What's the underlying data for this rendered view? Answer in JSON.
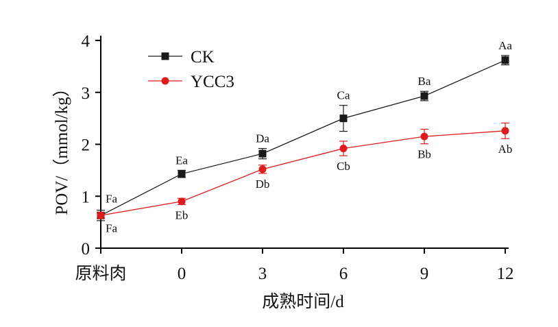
{
  "chart_data": {
    "type": "line",
    "categories": [
      "原料肉",
      "0",
      "3",
      "6",
      "9",
      "12"
    ],
    "xlabel": "成熟时间/d",
    "ylabel": "POV/（mmol/kg）",
    "ylim": [
      0,
      4
    ],
    "yticks": [
      "0",
      "1",
      "2",
      "3",
      "4"
    ],
    "grid": false,
    "legend_position": "top-left",
    "series": [
      {
        "name": "CK",
        "color": "#1a1a1a",
        "marker": "square",
        "values": [
          0.63,
          1.43,
          1.82,
          2.5,
          2.93,
          3.62
        ],
        "errors": [
          0.1,
          0.07,
          0.1,
          0.25,
          0.09,
          0.09
        ],
        "labels": [
          "Fa",
          "Ea",
          "Da",
          "Ca",
          "Ba",
          "Aa"
        ],
        "label_side": "above"
      },
      {
        "name": "YCC3",
        "color": "#e31a1c",
        "marker": "circle",
        "values": [
          0.63,
          0.9,
          1.52,
          1.92,
          2.15,
          2.26
        ],
        "errors": [
          0.06,
          0.06,
          0.08,
          0.14,
          0.14,
          0.15
        ],
        "labels": [
          "Fa",
          "Eb",
          "Db",
          "Cb",
          "Bb",
          "Ab"
        ],
        "label_side": "below"
      }
    ]
  }
}
